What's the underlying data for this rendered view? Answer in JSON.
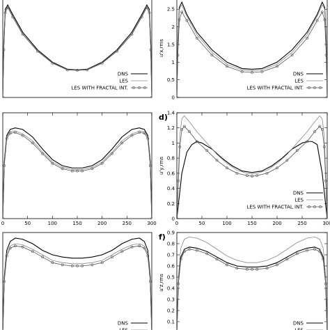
{
  "legend": {
    "dns": "DNS",
    "les": "LES",
    "les_fractal": "LES WITH FRACTAL INT."
  },
  "colors": {
    "dns": "#000000",
    "les": "#8a8a8a",
    "les_fractal": "#555555"
  },
  "chart_data": [
    {
      "id": "a",
      "panel_label": "",
      "type": "line",
      "ylabel": "",
      "xlim": [
        0,
        300
      ],
      "ylim": [
        0,
        2.8
      ],
      "x_ticks": [],
      "y_ticks": [],
      "show_legend": true,
      "series": [
        {
          "key": "dns",
          "x": [
            0,
            2,
            5,
            10,
            20,
            40,
            70,
            100,
            130,
            150,
            170,
            200,
            230,
            260,
            280,
            290,
            295,
            298,
            300
          ],
          "y": [
            0,
            1.5,
            2.5,
            2.62,
            2.35,
            1.85,
            1.35,
            1.0,
            0.8,
            0.78,
            0.8,
            1.0,
            1.35,
            1.85,
            2.35,
            2.62,
            2.5,
            1.5,
            0
          ]
        },
        {
          "key": "les",
          "x": [
            0,
            2,
            5,
            10,
            20,
            40,
            70,
            100,
            130,
            150,
            170,
            200,
            230,
            260,
            280,
            290,
            295,
            298,
            300
          ],
          "y": [
            0,
            1.4,
            2.45,
            2.58,
            2.3,
            1.8,
            1.32,
            0.98,
            0.79,
            0.77,
            0.79,
            0.98,
            1.32,
            1.8,
            2.3,
            2.58,
            2.45,
            1.4,
            0
          ]
        },
        {
          "key": "les_fractal",
          "x": [
            0,
            2,
            5,
            10,
            20,
            40,
            70,
            100,
            130,
            150,
            170,
            200,
            230,
            260,
            280,
            290,
            295,
            298,
            300
          ],
          "y": [
            0,
            1.35,
            2.4,
            2.55,
            2.28,
            1.79,
            1.31,
            0.97,
            0.78,
            0.77,
            0.78,
            0.97,
            1.31,
            1.79,
            2.28,
            2.55,
            2.4,
            1.35,
            0
          ]
        }
      ]
    },
    {
      "id": "b",
      "panel_label": "",
      "type": "line",
      "ylabel": "u'x,rms",
      "xlim": [
        0,
        300
      ],
      "ylim": [
        0,
        2.8
      ],
      "x_ticks": [],
      "y_ticks": [
        0,
        0.5,
        1,
        1.5,
        2,
        2.5
      ],
      "show_legend": true,
      "series": [
        {
          "key": "dns",
          "x": [
            0,
            2,
            5,
            10,
            20,
            40,
            70,
            100,
            130,
            150,
            170,
            200,
            230,
            260,
            280,
            290,
            295,
            298,
            300
          ],
          "y": [
            0,
            1.6,
            2.55,
            2.7,
            2.35,
            1.85,
            1.35,
            1.0,
            0.82,
            0.8,
            0.82,
            1.0,
            1.35,
            1.85,
            2.35,
            2.7,
            2.55,
            1.6,
            0
          ]
        },
        {
          "key": "les",
          "x": [
            0,
            2,
            5,
            10,
            20,
            40,
            70,
            100,
            130,
            150,
            170,
            200,
            230,
            260,
            280,
            290,
            295,
            298,
            300
          ],
          "y": [
            0,
            1.5,
            2.5,
            2.62,
            2.3,
            1.78,
            1.28,
            0.94,
            0.78,
            0.76,
            0.78,
            0.94,
            1.28,
            1.78,
            2.3,
            2.62,
            2.5,
            1.5,
            0
          ]
        },
        {
          "key": "les_fractal",
          "x": [
            0,
            2,
            5,
            10,
            20,
            40,
            70,
            100,
            130,
            150,
            170,
            200,
            230,
            260,
            280,
            290,
            295,
            298,
            300
          ],
          "y": [
            0,
            1.2,
            2.2,
            2.42,
            2.18,
            1.68,
            1.2,
            0.88,
            0.73,
            0.71,
            0.73,
            0.88,
            1.2,
            1.68,
            2.18,
            2.42,
            2.2,
            1.2,
            0
          ]
        }
      ]
    },
    {
      "id": "c",
      "panel_label": "",
      "type": "line",
      "ylabel": "",
      "xlim": [
        0,
        300
      ],
      "ylim": [
        0,
        1.4
      ],
      "x_ticks": [
        0,
        50,
        100,
        150,
        200,
        250,
        300
      ],
      "y_ticks": [],
      "show_legend": false,
      "series": [
        {
          "key": "dns",
          "x": [
            0,
            3,
            8,
            15,
            25,
            40,
            60,
            80,
            100,
            120,
            140,
            150,
            160,
            180,
            200,
            220,
            240,
            260,
            275,
            285,
            292,
            297,
            300
          ],
          "y": [
            0,
            0.75,
            1.1,
            1.18,
            1.2,
            1.18,
            1.08,
            0.92,
            0.78,
            0.7,
            0.67,
            0.67,
            0.67,
            0.7,
            0.78,
            0.92,
            1.08,
            1.18,
            1.2,
            1.18,
            1.1,
            0.75,
            0
          ]
        },
        {
          "key": "les",
          "x": [
            0,
            3,
            8,
            15,
            25,
            40,
            60,
            80,
            100,
            120,
            140,
            150,
            160,
            180,
            200,
            220,
            240,
            260,
            275,
            285,
            292,
            297,
            300
          ],
          "y": [
            0,
            0.72,
            1.08,
            1.15,
            1.16,
            1.12,
            1.03,
            0.88,
            0.75,
            0.68,
            0.65,
            0.65,
            0.65,
            0.68,
            0.75,
            0.88,
            1.03,
            1.12,
            1.16,
            1.15,
            1.08,
            0.72,
            0
          ]
        },
        {
          "key": "les_fractal",
          "x": [
            0,
            3,
            8,
            15,
            25,
            40,
            60,
            80,
            100,
            120,
            140,
            150,
            160,
            180,
            200,
            220,
            240,
            260,
            275,
            285,
            292,
            297,
            300
          ],
          "y": [
            0,
            0.7,
            1.06,
            1.13,
            1.14,
            1.1,
            1.0,
            0.86,
            0.73,
            0.66,
            0.63,
            0.63,
            0.63,
            0.66,
            0.73,
            0.86,
            1.0,
            1.1,
            1.14,
            1.13,
            1.06,
            0.7,
            0
          ]
        }
      ]
    },
    {
      "id": "d",
      "panel_label": "d)",
      "type": "line",
      "ylabel": "u'y,rms",
      "xlim": [
        0,
        300
      ],
      "ylim": [
        0,
        1.4
      ],
      "x_ticks": [
        0,
        50,
        100,
        150,
        200,
        250,
        300
      ],
      "y_ticks": [
        0,
        0.2,
        0.4,
        0.6,
        0.8,
        1,
        1.2,
        1.4
      ],
      "show_legend": true,
      "series": [
        {
          "key": "dns",
          "x": [
            0,
            5,
            10,
            20,
            30,
            40,
            50,
            70,
            90,
            110,
            130,
            150,
            170,
            190,
            210,
            230,
            250,
            260,
            270,
            280,
            290,
            295,
            300
          ],
          "y": [
            0,
            0.3,
            0.6,
            0.88,
            0.98,
            1.02,
            1.0,
            0.92,
            0.8,
            0.7,
            0.63,
            0.61,
            0.63,
            0.7,
            0.8,
            0.92,
            1.0,
            1.02,
            1.02,
            0.98,
            0.6,
            0.3,
            0
          ]
        },
        {
          "key": "les",
          "x": [
            0,
            3,
            6,
            10,
            15,
            25,
            40,
            60,
            80,
            100,
            120,
            140,
            150,
            160,
            180,
            200,
            220,
            240,
            260,
            275,
            285,
            290,
            294,
            297,
            300
          ],
          "y": [
            0,
            0.6,
            1.1,
            1.32,
            1.36,
            1.28,
            1.15,
            1.0,
            0.85,
            0.73,
            0.64,
            0.6,
            0.59,
            0.6,
            0.64,
            0.73,
            0.85,
            1.0,
            1.15,
            1.28,
            1.36,
            1.32,
            1.1,
            0.6,
            0
          ]
        },
        {
          "key": "les_fractal",
          "x": [
            0,
            3,
            6,
            10,
            15,
            25,
            40,
            60,
            80,
            100,
            120,
            140,
            150,
            160,
            180,
            200,
            220,
            240,
            260,
            275,
            285,
            290,
            294,
            297,
            300
          ],
          "y": [
            0,
            0.5,
            0.95,
            1.18,
            1.22,
            1.15,
            1.02,
            0.9,
            0.77,
            0.67,
            0.6,
            0.57,
            0.56,
            0.57,
            0.6,
            0.67,
            0.77,
            0.9,
            1.02,
            1.15,
            1.22,
            1.18,
            0.95,
            0.5,
            0
          ]
        }
      ]
    },
    {
      "id": "e",
      "panel_label": "",
      "type": "line",
      "ylabel": "",
      "xlim": [
        0,
        300
      ],
      "ylim": [
        0,
        0.9
      ],
      "x_ticks": [],
      "y_ticks": [],
      "show_legend": true,
      "series": [
        {
          "key": "dns",
          "x": [
            0,
            3,
            8,
            15,
            25,
            40,
            60,
            80,
            100,
            120,
            140,
            150,
            160,
            180,
            200,
            220,
            240,
            260,
            275,
            285,
            292,
            297,
            300
          ],
          "y": [
            0,
            0.5,
            0.74,
            0.82,
            0.85,
            0.84,
            0.8,
            0.74,
            0.7,
            0.68,
            0.67,
            0.67,
            0.67,
            0.68,
            0.7,
            0.74,
            0.8,
            0.84,
            0.85,
            0.82,
            0.74,
            0.5,
            0
          ]
        },
        {
          "key": "les",
          "x": [
            0,
            3,
            8,
            15,
            25,
            40,
            60,
            80,
            100,
            120,
            140,
            150,
            160,
            180,
            200,
            220,
            240,
            260,
            275,
            285,
            292,
            297,
            300
          ],
          "y": [
            0,
            0.48,
            0.71,
            0.78,
            0.8,
            0.79,
            0.75,
            0.7,
            0.65,
            0.63,
            0.62,
            0.62,
            0.62,
            0.63,
            0.65,
            0.7,
            0.75,
            0.79,
            0.8,
            0.78,
            0.71,
            0.48,
            0
          ]
        },
        {
          "key": "les_fractal",
          "x": [
            0,
            3,
            8,
            15,
            25,
            40,
            60,
            80,
            100,
            120,
            140,
            150,
            160,
            180,
            200,
            220,
            240,
            260,
            275,
            285,
            292,
            297,
            300
          ],
          "y": [
            0,
            0.46,
            0.69,
            0.76,
            0.78,
            0.77,
            0.73,
            0.68,
            0.63,
            0.61,
            0.6,
            0.6,
            0.6,
            0.61,
            0.63,
            0.68,
            0.73,
            0.77,
            0.78,
            0.76,
            0.69,
            0.46,
            0
          ]
        }
      ]
    },
    {
      "id": "f",
      "panel_label": "f)",
      "type": "line",
      "ylabel": "u'z,rms",
      "xlim": [
        0,
        300
      ],
      "ylim": [
        0,
        0.9
      ],
      "x_ticks": [],
      "y_ticks": [
        0.1,
        0.2,
        0.3,
        0.4,
        0.5,
        0.6,
        0.7,
        0.8,
        0.9
      ],
      "show_legend": true,
      "series": [
        {
          "key": "dns",
          "x": [
            0,
            3,
            8,
            15,
            25,
            40,
            60,
            80,
            100,
            120,
            140,
            150,
            160,
            180,
            200,
            220,
            240,
            260,
            275,
            285,
            292,
            297,
            300
          ],
          "y": [
            0,
            0.45,
            0.68,
            0.75,
            0.77,
            0.76,
            0.73,
            0.68,
            0.63,
            0.6,
            0.59,
            0.59,
            0.59,
            0.6,
            0.63,
            0.68,
            0.73,
            0.76,
            0.77,
            0.75,
            0.68,
            0.45,
            0
          ]
        },
        {
          "key": "les",
          "x": [
            0,
            3,
            8,
            15,
            25,
            40,
            60,
            80,
            100,
            120,
            140,
            150,
            160,
            180,
            200,
            220,
            240,
            260,
            275,
            285,
            292,
            297,
            300
          ],
          "y": [
            0,
            0.5,
            0.76,
            0.84,
            0.86,
            0.85,
            0.81,
            0.75,
            0.69,
            0.65,
            0.63,
            0.63,
            0.63,
            0.65,
            0.69,
            0.75,
            0.81,
            0.85,
            0.86,
            0.84,
            0.76,
            0.5,
            0
          ]
        },
        {
          "key": "les_fractal",
          "x": [
            0,
            3,
            8,
            15,
            25,
            40,
            60,
            80,
            100,
            120,
            140,
            150,
            160,
            180,
            200,
            220,
            240,
            260,
            275,
            285,
            292,
            297,
            300
          ],
          "y": [
            0,
            0.44,
            0.66,
            0.73,
            0.75,
            0.74,
            0.71,
            0.66,
            0.61,
            0.58,
            0.57,
            0.57,
            0.57,
            0.58,
            0.61,
            0.66,
            0.71,
            0.74,
            0.75,
            0.73,
            0.66,
            0.44,
            0
          ]
        }
      ]
    }
  ]
}
